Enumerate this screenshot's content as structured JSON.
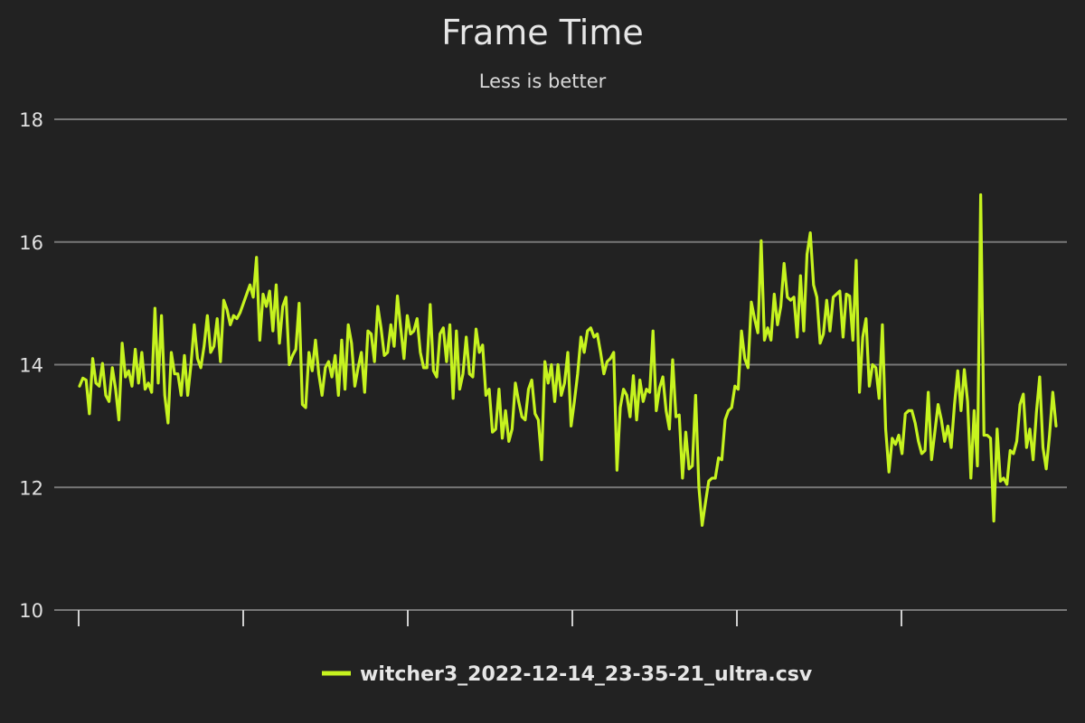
{
  "chart_data": {
    "type": "line",
    "title": "Frame Time",
    "subtitle": "Less is better",
    "xlabel": "",
    "ylabel": "",
    "ylim": [
      10,
      18
    ],
    "y_ticks": [
      10,
      12,
      14,
      16,
      18
    ],
    "x_ticks_count": 6,
    "grid": true,
    "legend_position": "bottom",
    "colors": {
      "background": "#222222",
      "series": "#c6f31f",
      "grid": "#777777",
      "text": "#e6e6e6"
    },
    "series": [
      {
        "name": "witcher3_2022-12-14_23-35-21_ultra.csv",
        "values": [
          13.65,
          13.78,
          13.75,
          13.2,
          14.1,
          13.7,
          13.65,
          14.02,
          13.5,
          13.4,
          13.95,
          13.6,
          13.1,
          14.35,
          13.8,
          13.9,
          13.65,
          14.25,
          13.7,
          14.2,
          13.6,
          13.7,
          13.55,
          14.92,
          13.7,
          14.8,
          13.5,
          13.05,
          14.2,
          13.85,
          13.85,
          13.5,
          14.15,
          13.5,
          14.0,
          14.65,
          14.1,
          13.95,
          14.3,
          14.8,
          14.2,
          14.3,
          14.75,
          14.05,
          15.05,
          14.9,
          14.65,
          14.8,
          14.75,
          14.85,
          15.0,
          15.15,
          15.3,
          15.1,
          15.75,
          14.4,
          15.15,
          14.95,
          15.2,
          14.55,
          15.3,
          14.35,
          14.95,
          15.1,
          14.0,
          14.15,
          14.25,
          15.0,
          13.35,
          13.3,
          14.2,
          13.9,
          14.4,
          13.85,
          13.5,
          13.95,
          14.05,
          13.8,
          14.15,
          13.5,
          14.4,
          13.6,
          14.65,
          14.35,
          13.65,
          13.95,
          14.2,
          13.55,
          14.55,
          14.5,
          14.05,
          14.95,
          14.6,
          14.15,
          14.2,
          14.65,
          14.3,
          15.12,
          14.6,
          14.1,
          14.8,
          14.5,
          14.55,
          14.75,
          14.2,
          13.95,
          13.95,
          14.98,
          13.9,
          13.8,
          14.5,
          14.6,
          14.05,
          14.65,
          13.45,
          14.55,
          13.6,
          13.85,
          14.45,
          13.85,
          13.8,
          14.58,
          14.2,
          14.32,
          13.5,
          13.6,
          12.9,
          12.95,
          13.6,
          12.8,
          13.25,
          12.75,
          12.95,
          13.7,
          13.4,
          13.15,
          13.1,
          13.6,
          13.75,
          13.2,
          13.1,
          12.45,
          14.05,
          13.7,
          14.0,
          13.4,
          14.0,
          13.5,
          13.7,
          14.2,
          13.0,
          13.4,
          13.85,
          14.45,
          14.2,
          14.55,
          14.6,
          14.45,
          14.5,
          14.2,
          13.85,
          14.05,
          14.1,
          14.2,
          12.28,
          13.3,
          13.6,
          13.5,
          13.15,
          13.82,
          13.1,
          13.75,
          13.4,
          13.6,
          13.55,
          14.55,
          13.25,
          13.62,
          13.8,
          13.25,
          12.95,
          14.08,
          13.15,
          13.18,
          12.15,
          12.9,
          12.3,
          12.35,
          13.5,
          12.0,
          11.38,
          11.75,
          12.1,
          12.15,
          12.15,
          12.48,
          12.45,
          13.1,
          13.25,
          13.3,
          13.65,
          13.6,
          14.55,
          14.1,
          13.95,
          15.02,
          14.75,
          14.52,
          16.02,
          14.4,
          14.6,
          14.4,
          15.15,
          14.65,
          14.95,
          15.65,
          15.1,
          15.05,
          15.1,
          14.45,
          15.45,
          14.55,
          15.8,
          16.15,
          15.3,
          15.1,
          14.35,
          14.5,
          15.05,
          14.55,
          15.1,
          15.15,
          15.2,
          14.45,
          15.15,
          15.12,
          14.4,
          15.7,
          13.55,
          14.45,
          14.75,
          13.65,
          14.0,
          13.95,
          13.45,
          14.65,
          12.95,
          12.25,
          12.8,
          12.7,
          12.85,
          12.55,
          13.2,
          13.25,
          13.25,
          13.05,
          12.75,
          12.55,
          12.6,
          13.55,
          12.45,
          12.9,
          13.35,
          13.1,
          12.75,
          13.0,
          12.65,
          13.35,
          13.9,
          13.25,
          13.92,
          13.4,
          12.15,
          13.25,
          12.35,
          16.77,
          12.85,
          12.85,
          12.8,
          11.45,
          12.95,
          12.1,
          12.15,
          12.05,
          12.6,
          12.55,
          12.75,
          13.35,
          13.52,
          12.65,
          12.95,
          12.45,
          13.22,
          13.8,
          12.65,
          12.3,
          12.85,
          13.55,
          13.0
        ]
      }
    ]
  }
}
